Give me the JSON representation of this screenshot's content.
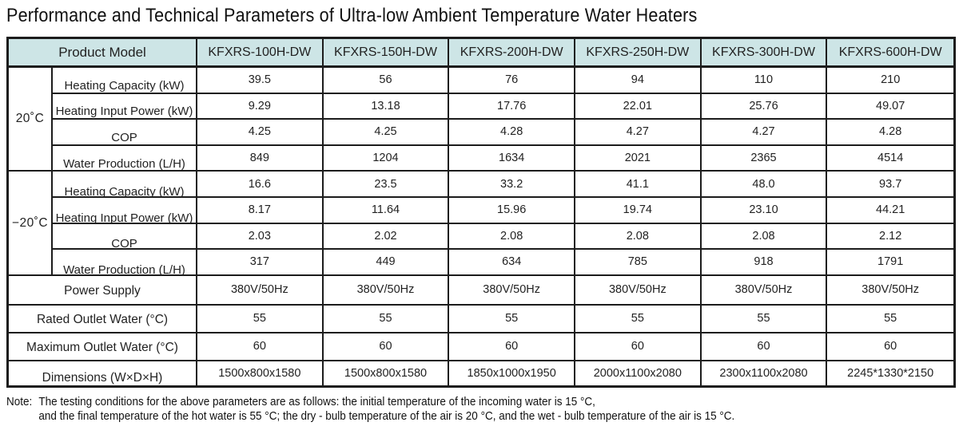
{
  "title": "Performance and Technical Parameters of Ultra-low Ambient Temperature Water Heaters",
  "colors": {
    "header_bg": "#cde5e6",
    "border": "#1c1c1c",
    "text": "#222222"
  },
  "table": {
    "product_model_label": "Product Model",
    "models": [
      "KFXRS-100H-DW",
      "KFXRS-150H-DW",
      "KFXRS-200H-DW",
      "KFXRS-250H-DW",
      "KFXRS-300H-DW",
      "KFXRS-600H-DW"
    ],
    "groups": [
      {
        "temp": "20˚C",
        "rows": [
          {
            "label": "Heating Capacity (kW)",
            "values": [
              "39.5",
              "56",
              "76",
              "94",
              "110",
              "210"
            ]
          },
          {
            "label": "Heating Input Power (kW)",
            "values": [
              "9.29",
              "13.18",
              "17.76",
              "22.01",
              "25.76",
              "49.07"
            ]
          },
          {
            "label": "COP",
            "values": [
              "4.25",
              "4.25",
              "4.28",
              "4.27",
              "4.27",
              "4.28"
            ]
          },
          {
            "label": "Water Production (L/H)",
            "values": [
              "849",
              "1204",
              "1634",
              "2021",
              "2365",
              "4514"
            ]
          }
        ]
      },
      {
        "temp": "−20˚C",
        "rows": [
          {
            "label": "Heating Capacity (kW)",
            "values": [
              "16.6",
              "23.5",
              "33.2",
              "41.1",
              "48.0",
              "93.7"
            ]
          },
          {
            "label": "Heating Input Power (kW)",
            "values": [
              "8.17",
              "11.64",
              "15.96",
              "19.74",
              "23.10",
              "44.21"
            ]
          },
          {
            "label": "COP",
            "values": [
              "2.03",
              "2.02",
              "2.08",
              "2.08",
              "2.08",
              "2.12"
            ]
          },
          {
            "label": "Water Production (L/H)",
            "values": [
              "317",
              "449",
              "634",
              "785",
              "918",
              "1791"
            ]
          }
        ]
      }
    ],
    "footer_rows": [
      {
        "label": "Power Supply",
        "values": [
          "380V/50Hz",
          "380V/50Hz",
          "380V/50Hz",
          "380V/50Hz",
          "380V/50Hz",
          "380V/50Hz"
        ]
      },
      {
        "label": "Rated Outlet Water (°C)",
        "values": [
          "55",
          "55",
          "55",
          "55",
          "55",
          "55"
        ]
      },
      {
        "label": "Maximum Outlet Water (°C)",
        "values": [
          "60",
          "60",
          "60",
          "60",
          "60",
          "60"
        ]
      },
      {
        "label": "Dimensions (W×D×H)",
        "values": [
          "1500x800x1580",
          "1500x800x1580",
          "1850x1000x1950",
          "2000x1100x2080",
          "2300x1100x2080",
          "2245*1330*2150"
        ]
      }
    ]
  },
  "note": {
    "prefix": "Note:",
    "line1": "The testing conditions for the above parameters are as follows: the initial temperature of the incoming water is 15 °C,",
    "line2": "and the final temperature of the hot water is 55 °C; the dry - bulb temperature of the air is 20 °C, and the wet - bulb temperature of the air is 15 °C."
  }
}
